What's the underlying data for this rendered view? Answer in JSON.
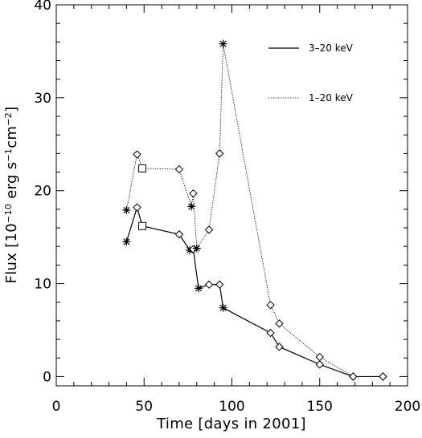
{
  "chart_data": {
    "type": "line",
    "xlabel": "Time [days in 2001]",
    "ylabel": {
      "pre": "Flux [10",
      "exp1": "−10",
      "mid": " erg s",
      "exp2": "−1",
      "mid2": "cm",
      "exp3": "−2",
      "post": "]"
    },
    "xlim": [
      0,
      200
    ],
    "ylim": [
      -1,
      40
    ],
    "x_ticks": [
      0,
      50,
      100,
      150,
      200
    ],
    "y_ticks": [
      0,
      10,
      20,
      30,
      40
    ],
    "x_tick_labels": [
      "0",
      "50",
      "100",
      "150",
      "200"
    ],
    "y_tick_labels": [
      "0",
      "10",
      "20",
      "30",
      "40"
    ],
    "grid": false,
    "legend_position": "top-right",
    "series": [
      {
        "name": "3–20 keV",
        "line_style": "solid",
        "points": [
          {
            "x": 40,
            "y": 14.5,
            "marker": "asterisk"
          },
          {
            "x": 46,
            "y": 18.2,
            "marker": "diamond"
          },
          {
            "x": 49,
            "y": 16.2,
            "marker": "square"
          },
          {
            "x": 70,
            "y": 15.3,
            "marker": "diamond"
          },
          {
            "x": 76,
            "y": 13.6,
            "marker": "asterisk"
          },
          {
            "x": 78,
            "y": 13.7,
            "marker": "diamond"
          },
          {
            "x": 81,
            "y": 9.5,
            "marker": "asterisk"
          },
          {
            "x": 87,
            "y": 9.9,
            "marker": "diamond"
          },
          {
            "x": 93,
            "y": 9.9,
            "marker": "diamond"
          },
          {
            "x": 95,
            "y": 7.4,
            "marker": "asterisk"
          },
          {
            "x": 122,
            "y": 4.7,
            "marker": "diamond"
          },
          {
            "x": 127,
            "y": 3.2,
            "marker": "diamond"
          },
          {
            "x": 150,
            "y": 1.3,
            "marker": "diamond"
          },
          {
            "x": 169,
            "y": 0.0,
            "marker": "diamond"
          },
          {
            "x": 186,
            "y": 0.0,
            "marker": "diamond"
          }
        ]
      },
      {
        "name": "1–20 keV",
        "line_style": "dotted",
        "points": [
          {
            "x": 40,
            "y": 17.9,
            "marker": "asterisk"
          },
          {
            "x": 46,
            "y": 23.9,
            "marker": "diamond"
          },
          {
            "x": 49,
            "y": 22.4,
            "marker": "square"
          },
          {
            "x": 70,
            "y": 22.3,
            "marker": "diamond"
          },
          {
            "x": 77,
            "y": 18.3,
            "marker": "asterisk"
          },
          {
            "x": 78,
            "y": 19.7,
            "marker": "diamond"
          },
          {
            "x": 80,
            "y": 13.8,
            "marker": "asterisk"
          },
          {
            "x": 87,
            "y": 15.8,
            "marker": "diamond"
          },
          {
            "x": 93,
            "y": 24.0,
            "marker": "diamond"
          },
          {
            "x": 95,
            "y": 35.8,
            "marker": "asterisk"
          },
          {
            "x": 122,
            "y": 7.7,
            "marker": "diamond"
          },
          {
            "x": 127,
            "y": 5.7,
            "marker": "diamond"
          },
          {
            "x": 150,
            "y": 2.1,
            "marker": "diamond"
          },
          {
            "x": 169,
            "y": 0.0,
            "marker": "diamond"
          },
          {
            "x": 186,
            "y": 0.0,
            "marker": "diamond"
          }
        ]
      }
    ]
  }
}
